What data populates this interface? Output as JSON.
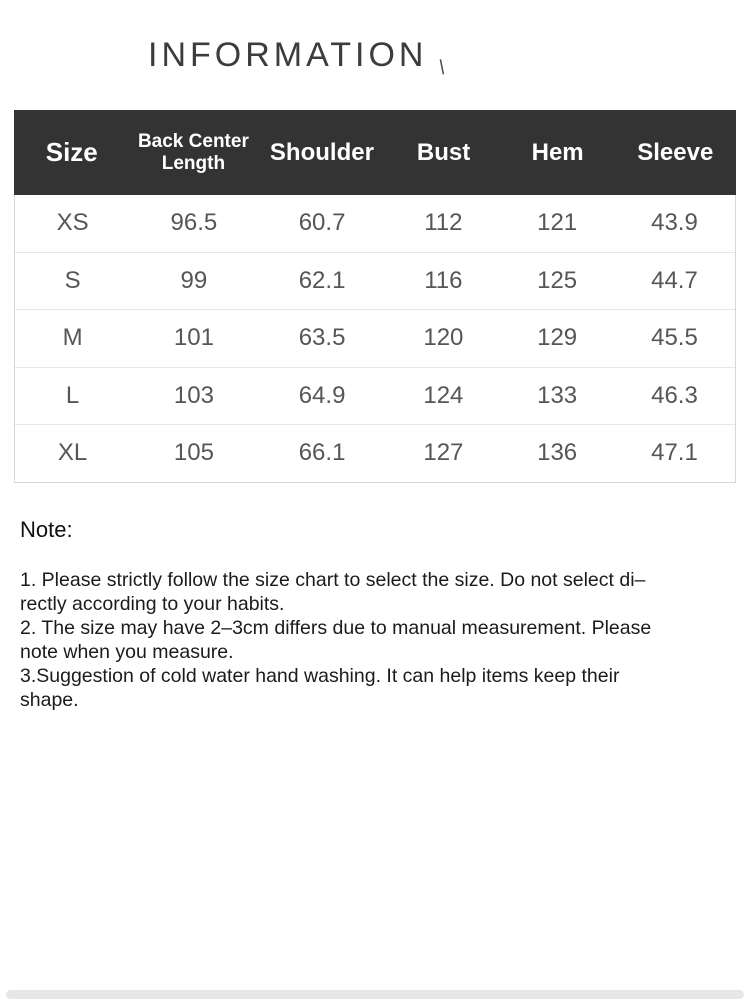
{
  "page": {
    "title": "INFORMATION",
    "title_mark": "\\"
  },
  "colors": {
    "table_header_bg": "#333333",
    "table_header_text": "#ffffff",
    "table_body_text": "#55565a",
    "note_text": "#1b1b1b"
  },
  "size_chart": {
    "columns": [
      "Size",
      "Back Center\nLength",
      "Shoulder",
      "Bust",
      "Hem",
      "Sleeve"
    ],
    "rows": [
      [
        "XS",
        "96.5",
        "60.7",
        "112",
        "121",
        "43.9"
      ],
      [
        "S",
        "99",
        "62.1",
        "116",
        "125",
        "44.7"
      ],
      [
        "M",
        "101",
        "63.5",
        "120",
        "129",
        "45.5"
      ],
      [
        "L",
        "103",
        "64.9",
        "124",
        "133",
        "46.3"
      ],
      [
        "XL",
        "105",
        "66.1",
        "127",
        "136",
        "47.1"
      ]
    ]
  },
  "note": {
    "heading": "Note:",
    "lines": [
      "1. Please strictly follow the size chart  to select the size. Do not select di–",
      "rectly according to your habits.",
      "2. The size may have 2–3cm differs due to manual measurement. Please",
      "note when you measure.",
      "3.Suggestion of cold water hand washing. It can help items keep their",
      "shape."
    ]
  }
}
